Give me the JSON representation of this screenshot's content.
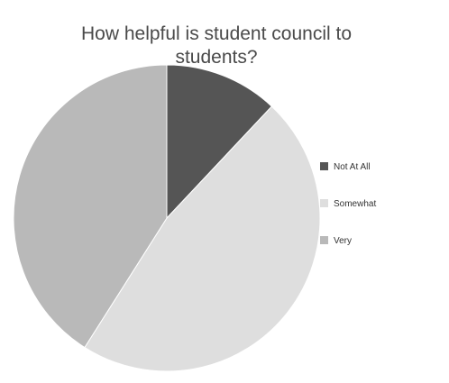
{
  "chart_data": {
    "type": "pie",
    "title_lines": [
      "How helpful is student council to",
      "students?"
    ],
    "categories": [
      "Not At All",
      "Somewhat",
      "Very"
    ],
    "values": [
      12,
      47,
      41
    ],
    "colors": [
      "#555555",
      "#dedede",
      "#b9b9b9"
    ],
    "start_angle_deg": 0,
    "direction": "clockwise",
    "legend_position": "right"
  }
}
